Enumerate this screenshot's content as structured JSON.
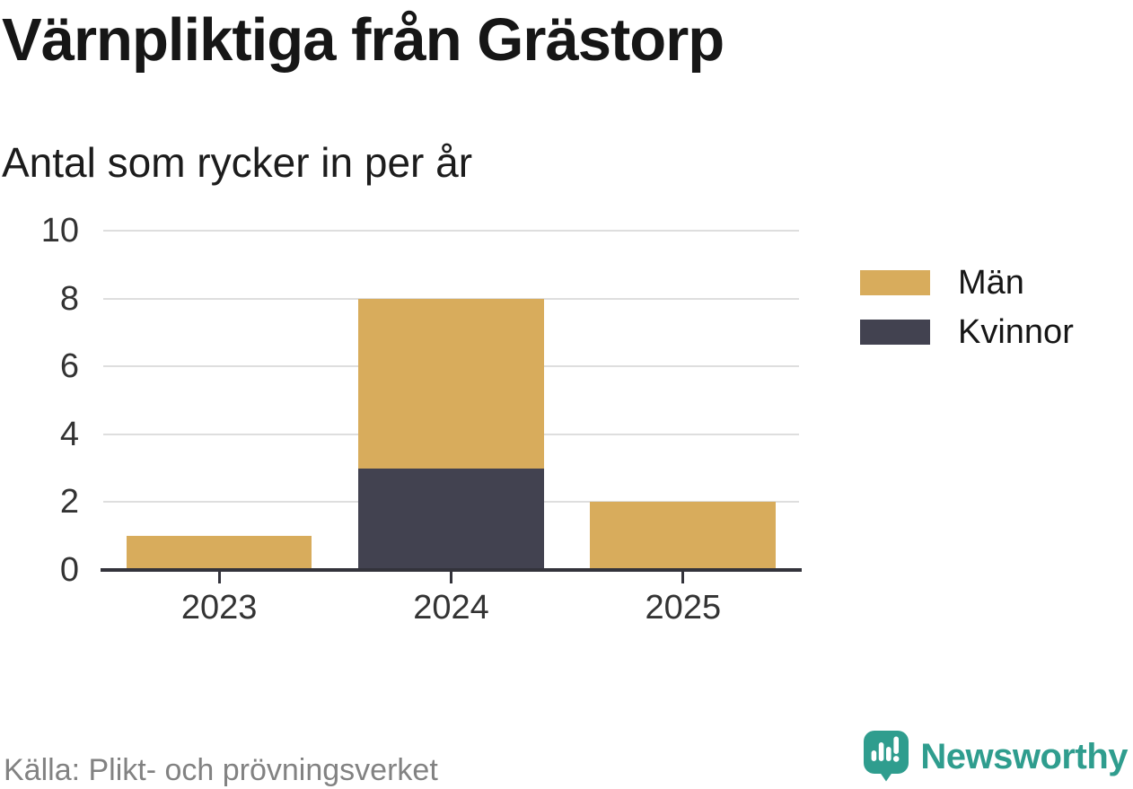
{
  "title": "Värnpliktiga från Grästorp",
  "subtitle": "Antal som rycker in per år",
  "source": "Källa: Plikt- och prövningsverket",
  "brand": {
    "name": "Newsworthy",
    "icon_name": "bar-chart-speech-bubble-icon",
    "color": "#2f9d8e"
  },
  "colors": {
    "men": "#d8ac5c",
    "women": "#424250",
    "gridline": "#dedede",
    "axis": "#33333b",
    "tick_text": "#333333",
    "muted_text": "#828282"
  },
  "legend": {
    "items": [
      {
        "label": "Män",
        "color": "#d8ac5c"
      },
      {
        "label": "Kvinnor",
        "color": "#424250"
      }
    ]
  },
  "chart_data": {
    "type": "bar",
    "stacked": true,
    "title": "Värnpliktiga från Grästorp",
    "subtitle": "Antal som rycker in per år",
    "categories": [
      "2023",
      "2024",
      "2025"
    ],
    "series": [
      {
        "name": "Män",
        "values": [
          1,
          5,
          2
        ],
        "color": "#d8ac5c"
      },
      {
        "name": "Kvinnor",
        "values": [
          0,
          3,
          0
        ],
        "color": "#424250"
      }
    ],
    "stack_order_bottom_to_top": [
      "Kvinnor",
      "Män"
    ],
    "xlabel": "",
    "ylabel": "",
    "ylim": [
      0,
      10
    ],
    "yticks": [
      0,
      2,
      4,
      6,
      8,
      10
    ],
    "grid": true,
    "legend_position": "right"
  }
}
